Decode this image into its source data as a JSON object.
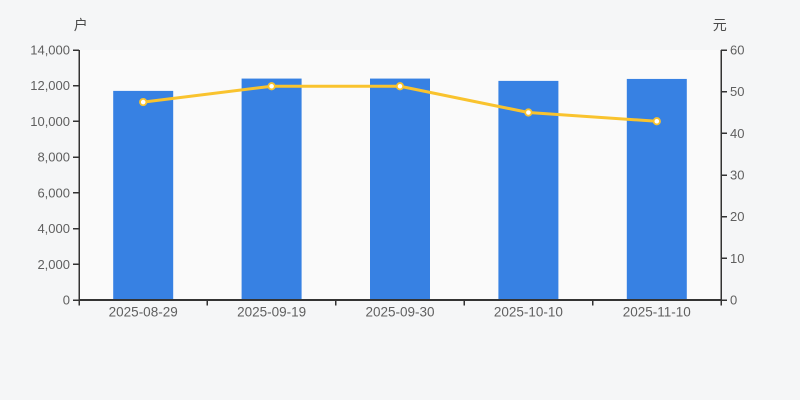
{
  "page": {
    "background": "#f5f6f7",
    "plot_background": "#fafafa"
  },
  "chart_data": {
    "type": "bar",
    "categories": [
      "2025-08-29",
      "2025-09-19",
      "2025-09-30",
      "2025-10-10",
      "2025-11-10"
    ],
    "series": [
      {
        "id": "bars",
        "type": "bar",
        "axis": "left",
        "unit": "户",
        "color": "#3781e3",
        "values": [
          11710,
          12400,
          12400,
          12270,
          12380
        ]
      },
      {
        "id": "line",
        "type": "line",
        "axis": "right",
        "unit": "元",
        "color": "#f9c32e",
        "marker_fill": "#ffffff",
        "values": [
          47.5,
          51.3,
          51.3,
          45.0,
          42.9
        ]
      }
    ],
    "y_left": {
      "unit": "户",
      "min": 0,
      "max": 14000,
      "tick_step": 2000,
      "tick_labels": [
        "0",
        "2,000",
        "4,000",
        "6,000",
        "8,000",
        "10,000",
        "12,000",
        "14,000"
      ]
    },
    "y_right": {
      "unit": "元",
      "min": 0,
      "max": 60,
      "tick_step": 10,
      "tick_labels": [
        "0",
        "10",
        "20",
        "30",
        "40",
        "50",
        "60"
      ]
    },
    "grid": false,
    "legend_position": "none"
  },
  "colors": {
    "axis_line": "#333333",
    "tick_text": "#5f5f5f",
    "unit_text": "#4a4a4a"
  }
}
